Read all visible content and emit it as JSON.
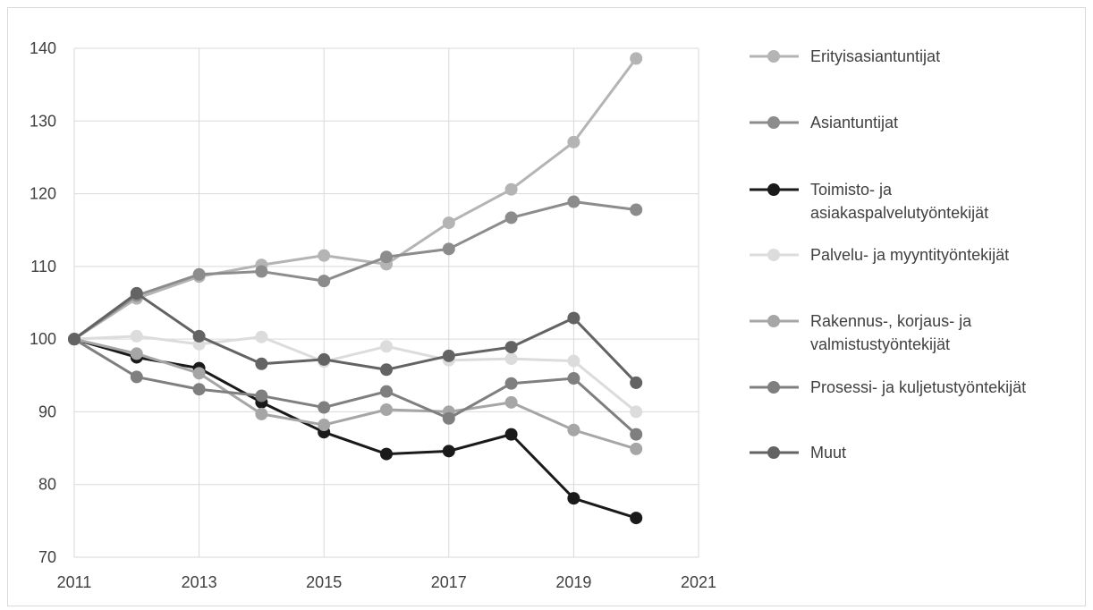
{
  "chart_data": {
    "type": "line",
    "title": "",
    "xlabel": "",
    "ylabel": "",
    "xlim": [
      2011,
      2021
    ],
    "ylim": [
      70,
      140
    ],
    "x_ticks": [
      2011,
      2013,
      2015,
      2017,
      2019,
      2021
    ],
    "y_ticks": [
      70,
      80,
      90,
      100,
      110,
      120,
      130,
      140
    ],
    "grid": true,
    "legend_position": "right",
    "x": [
      2011,
      2012,
      2013,
      2014,
      2015,
      2016,
      2017,
      2018,
      2019,
      2020
    ],
    "series": [
      {
        "name": "Erityisasiantuntijat",
        "color": "#b4b4b4",
        "values": [
          100,
          105.6,
          108.6,
          110.2,
          111.5,
          110.3,
          116.0,
          120.6,
          127.1,
          138.6
        ]
      },
      {
        "name": "Asiantuntijat",
        "color": "#8c8c8c",
        "values": [
          100,
          106.0,
          108.9,
          109.3,
          108.0,
          111.3,
          112.4,
          116.7,
          118.9,
          117.8
        ]
      },
      {
        "name": "Toimisto- ja asiakaspalvelutyöntekijät",
        "color": "#1a1a1a",
        "values": [
          100,
          97.5,
          96.0,
          91.3,
          87.2,
          84.2,
          84.6,
          86.9,
          78.1,
          75.4
        ]
      },
      {
        "name": "Palvelu- ja myyntityöntekijät",
        "color": "#dcdcdc",
        "values": [
          100,
          100.4,
          99.3,
          100.3,
          96.9,
          99.0,
          97.1,
          97.3,
          97.0,
          90.0
        ]
      },
      {
        "name": "Rakennus-, korjaus- ja valmistustyöntekijät",
        "color": "#a6a6a6",
        "values": [
          100,
          98.0,
          95.3,
          89.7,
          88.2,
          90.3,
          90.0,
          91.3,
          87.5,
          84.9
        ]
      },
      {
        "name": "Prosessi- ja kuljetustyöntekijät",
        "color": "#7f7f7f",
        "values": [
          100,
          94.8,
          93.1,
          92.2,
          90.6,
          92.8,
          89.1,
          93.9,
          94.6,
          86.9
        ]
      },
      {
        "name": "Muut",
        "color": "#636363",
        "values": [
          100,
          106.3,
          100.4,
          96.6,
          97.2,
          95.8,
          97.7,
          98.9,
          102.9,
          94.0
        ]
      }
    ]
  }
}
